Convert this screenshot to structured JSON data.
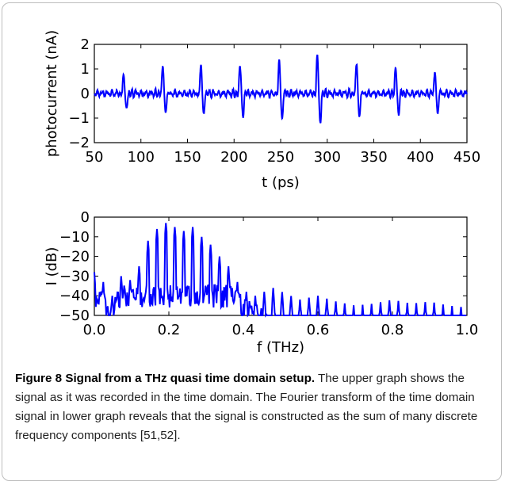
{
  "caption": {
    "label": "Figure 8",
    "title": "Signal from a THz quasi time domain setup.",
    "text": "The upper graph shows the signal as it was recorded in the time domain. The Fourier transform of the time domain signal in lower graph reveals that the signal is constructed as the sum of many discrete frequency components [51,52]."
  },
  "chart_data": [
    {
      "type": "line",
      "xlabel": "t (ps)",
      "ylabel": "photocurrent (nA)",
      "xlim": [
        50,
        450
      ],
      "ylim": [
        -2,
        2
      ],
      "xticks": [
        "50",
        "100",
        "150",
        "200",
        "250",
        "300",
        "350",
        "400",
        "450"
      ],
      "yticks": [
        "2",
        "1",
        "0",
        "−1",
        "−2"
      ],
      "grid": false,
      "line_color": "#0000ff",
      "pulses": [
        {
          "t": 83,
          "max": 0.8,
          "min": -0.7
        },
        {
          "t": 125,
          "max": 1.2,
          "min": -0.8
        },
        {
          "t": 166,
          "max": 1.2,
          "min": -0.9
        },
        {
          "t": 208,
          "max": 1.2,
          "min": -1.0
        },
        {
          "t": 250,
          "max": 1.4,
          "min": -1.1
        },
        {
          "t": 291,
          "max": 1.6,
          "min": -1.3
        },
        {
          "t": 333,
          "max": 1.3,
          "min": -1.0
        },
        {
          "t": 375,
          "max": 1.1,
          "min": -0.9
        },
        {
          "t": 417,
          "max": 0.9,
          "min": -0.8
        }
      ]
    },
    {
      "type": "line",
      "xlabel": "f (THz)",
      "ylabel": "I (dB)",
      "xlim": [
        0.0,
        1.0
      ],
      "ylim": [
        -50,
        0
      ],
      "xticks": [
        "0.0",
        "0.2",
        "0.4",
        "0.6",
        "0.8",
        "1.0"
      ],
      "yticks": [
        "0",
        "−10",
        "−20",
        "−30",
        "−40",
        "−50"
      ],
      "grid": false,
      "line_color": "#0000ff",
      "peak_spacing_thz": 0.024,
      "peaks": [
        {
          "f": 0.0,
          "db": -28
        },
        {
          "f": 0.024,
          "db": -33
        },
        {
          "f": 0.048,
          "db": -40
        },
        {
          "f": 0.072,
          "db": -30
        },
        {
          "f": 0.096,
          "db": -32
        },
        {
          "f": 0.12,
          "db": -25
        },
        {
          "f": 0.144,
          "db": -12
        },
        {
          "f": 0.168,
          "db": -6
        },
        {
          "f": 0.192,
          "db": -3
        },
        {
          "f": 0.2,
          "db": 0
        },
        {
          "f": 0.216,
          "db": -5
        },
        {
          "f": 0.24,
          "db": -7
        },
        {
          "f": 0.264,
          "db": -5
        },
        {
          "f": 0.288,
          "db": -10
        },
        {
          "f": 0.312,
          "db": -14
        },
        {
          "f": 0.336,
          "db": -20
        },
        {
          "f": 0.36,
          "db": -25
        },
        {
          "f": 0.384,
          "db": -33
        },
        {
          "f": 0.408,
          "db": -38
        },
        {
          "f": 0.432,
          "db": -40
        },
        {
          "f": 0.48,
          "db": -36
        },
        {
          "f": 0.55,
          "db": -42
        },
        {
          "f": 0.6,
          "db": -40
        },
        {
          "f": 0.65,
          "db": -43
        },
        {
          "f": 0.7,
          "db": -45
        },
        {
          "f": 0.75,
          "db": -44
        },
        {
          "f": 0.8,
          "db": -42
        },
        {
          "f": 0.85,
          "db": -44
        },
        {
          "f": 0.9,
          "db": -43
        },
        {
          "f": 0.95,
          "db": -45
        },
        {
          "f": 1.0,
          "db": -46
        }
      ]
    }
  ]
}
